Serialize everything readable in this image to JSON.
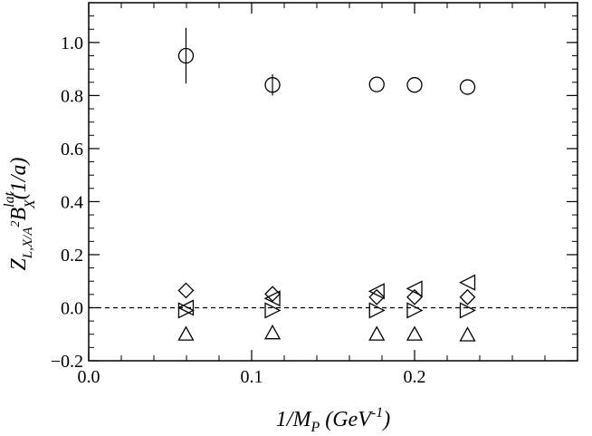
{
  "chart_data": {
    "type": "scatter",
    "xlabel": {
      "main": "1/M",
      "main_sub": "P",
      "unit_open": " (GeV",
      "unit_sup": "-1",
      "unit_close": ")"
    },
    "ylabel": {
      "z": "Z",
      "z_sub": "L,X/A",
      "z_sup": "2",
      "b": "B",
      "b_sup": "lat",
      "b_sub": "X",
      "unit": "(1/a)"
    },
    "xlim": [
      0.0,
      0.3
    ],
    "ylim": [
      -0.2,
      1.15
    ],
    "x_ticks": [
      {
        "value": 0.0,
        "label": "0.0"
      },
      {
        "value": 0.1,
        "label": "0.1"
      },
      {
        "value": 0.2,
        "label": "0.2"
      }
    ],
    "y_ticks": [
      {
        "value": -0.2,
        "label": "−0.2"
      },
      {
        "value": 0.0,
        "label": "0.0"
      },
      {
        "value": 0.2,
        "label": "0.2"
      },
      {
        "value": 0.4,
        "label": "0.4"
      },
      {
        "value": 0.6,
        "label": "0.6"
      },
      {
        "value": 0.8,
        "label": "0.8"
      },
      {
        "value": 1.0,
        "label": "1.0"
      }
    ],
    "x_minor_step": 0.02,
    "y_minor_step": 0.05,
    "zero_line": {
      "y": 0.0,
      "style": "dashed"
    },
    "series": [
      {
        "marker": "circle",
        "points": [
          {
            "x": 0.0597,
            "y": 0.95,
            "err": 0.105
          },
          {
            "x": 0.1128,
            "y": 0.84,
            "err": 0.04
          },
          {
            "x": 0.1768,
            "y": 0.842,
            "err": 0.0
          },
          {
            "x": 0.2,
            "y": 0.84,
            "err": 0.0
          },
          {
            "x": 0.2325,
            "y": 0.832,
            "err": 0.0
          }
        ]
      },
      {
        "marker": "diamond",
        "points": [
          {
            "x": 0.0597,
            "y": 0.065
          },
          {
            "x": 0.1128,
            "y": 0.052
          },
          {
            "x": 0.1768,
            "y": 0.04
          },
          {
            "x": 0.2,
            "y": 0.04
          },
          {
            "x": 0.2325,
            "y": 0.04
          }
        ]
      },
      {
        "marker": "triangle-left",
        "points": [
          {
            "x": 0.0597,
            "y": 0.0
          },
          {
            "x": 0.1128,
            "y": 0.035
          },
          {
            "x": 0.1768,
            "y": 0.062
          },
          {
            "x": 0.2,
            "y": 0.072
          },
          {
            "x": 0.2325,
            "y": 0.095
          }
        ]
      },
      {
        "marker": "triangle-right",
        "points": [
          {
            "x": 0.0597,
            "y": -0.01
          },
          {
            "x": 0.1128,
            "y": -0.01
          },
          {
            "x": 0.1768,
            "y": -0.01
          },
          {
            "x": 0.2,
            "y": -0.01
          },
          {
            "x": 0.2325,
            "y": -0.01
          }
        ]
      },
      {
        "marker": "triangle-up",
        "points": [
          {
            "x": 0.0597,
            "y": -0.1
          },
          {
            "x": 0.1128,
            "y": -0.095
          },
          {
            "x": 0.1768,
            "y": -0.1
          },
          {
            "x": 0.2,
            "y": -0.1
          },
          {
            "x": 0.2325,
            "y": -0.103
          }
        ]
      }
    ]
  }
}
